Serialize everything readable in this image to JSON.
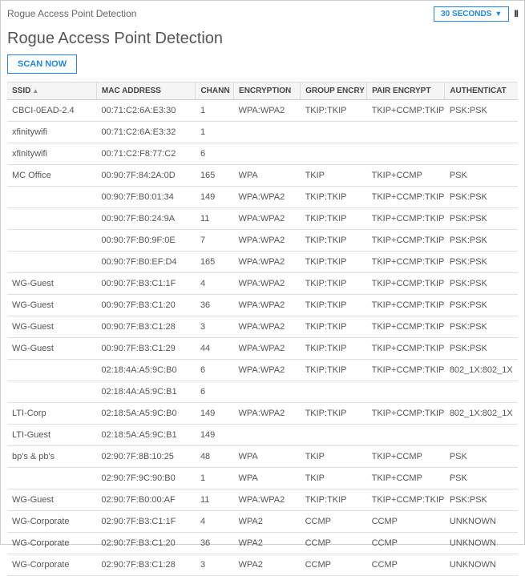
{
  "breadcrumb": "Rogue Access Point Detection",
  "refresh": {
    "label": "30 SECONDS"
  },
  "pageTitle": "Rogue Access Point Detection",
  "scanBtn": "SCAN NOW",
  "columns": {
    "ssid": "SSID",
    "mac": "MAC ADDRESS",
    "chan": "CHANN",
    "enc": "ENCRYPTION",
    "grp": "GROUP ENCRY",
    "pair": "PAIR ENCRYPT",
    "auth": "AUTHENTICAT"
  },
  "rows": [
    {
      "ssid": "CBCI-0EAD-2.4",
      "mac": "00:71:C2:6A:E3:30",
      "chan": "1",
      "enc": "WPA:WPA2",
      "grp": "TKIP:TKIP",
      "pair": "TKIP+CCMP:TKIP",
      "auth": "PSK:PSK"
    },
    {
      "ssid": "xfinitywifi",
      "mac": "00:71:C2:6A:E3:32",
      "chan": "1",
      "enc": "",
      "grp": "",
      "pair": "",
      "auth": ""
    },
    {
      "ssid": "xfinitywifi",
      "mac": "00:71:C2:F8:77:C2",
      "chan": "6",
      "enc": "",
      "grp": "",
      "pair": "",
      "auth": ""
    },
    {
      "ssid": "MC Office",
      "mac": "00:90:7F:84:2A:0D",
      "chan": "165",
      "enc": "WPA",
      "grp": "TKIP",
      "pair": "TKIP+CCMP",
      "auth": "PSK"
    },
    {
      "ssid": "",
      "mac": "00:90:7F:B0:01:34",
      "chan": "149",
      "enc": "WPA:WPA2",
      "grp": "TKIP:TKIP",
      "pair": "TKIP+CCMP:TKIP",
      "auth": "PSK:PSK"
    },
    {
      "ssid": "",
      "mac": "00:90:7F:B0:24:9A",
      "chan": "11",
      "enc": "WPA:WPA2",
      "grp": "TKIP:TKIP",
      "pair": "TKIP+CCMP:TKIP",
      "auth": "PSK:PSK"
    },
    {
      "ssid": "",
      "mac": "00:90:7F:B0:9F:0E",
      "chan": "7",
      "enc": "WPA:WPA2",
      "grp": "TKIP:TKIP",
      "pair": "TKIP+CCMP:TKIP",
      "auth": "PSK:PSK"
    },
    {
      "ssid": "",
      "mac": "00:90:7F:B0:EF:D4",
      "chan": "165",
      "enc": "WPA:WPA2",
      "grp": "TKIP:TKIP",
      "pair": "TKIP+CCMP:TKIP",
      "auth": "PSK:PSK"
    },
    {
      "ssid": "WG-Guest",
      "mac": "00:90:7F:B3:C1:1F",
      "chan": "4",
      "enc": "WPA:WPA2",
      "grp": "TKIP:TKIP",
      "pair": "TKIP+CCMP:TKIP",
      "auth": "PSK:PSK"
    },
    {
      "ssid": "WG-Guest",
      "mac": "00:90:7F:B3:C1:20",
      "chan": "36",
      "enc": "WPA:WPA2",
      "grp": "TKIP:TKIP",
      "pair": "TKIP+CCMP:TKIP",
      "auth": "PSK:PSK"
    },
    {
      "ssid": "WG-Guest",
      "mac": "00:90:7F:B3:C1:28",
      "chan": "3",
      "enc": "WPA:WPA2",
      "grp": "TKIP:TKIP",
      "pair": "TKIP+CCMP:TKIP",
      "auth": "PSK:PSK"
    },
    {
      "ssid": "WG-Guest",
      "mac": "00:90:7F:B3:C1:29",
      "chan": "44",
      "enc": "WPA:WPA2",
      "grp": "TKIP:TKIP",
      "pair": "TKIP+CCMP:TKIP",
      "auth": "PSK:PSK"
    },
    {
      "ssid": "",
      "mac": "02:18:4A:A5:9C:B0",
      "chan": "6",
      "enc": "WPA:WPA2",
      "grp": "TKIP:TKIP",
      "pair": "TKIP+CCMP:TKIP",
      "auth": "802_1X:802_1X"
    },
    {
      "ssid": "",
      "mac": "02:18:4A:A5:9C:B1",
      "chan": "6",
      "enc": "",
      "grp": "",
      "pair": "",
      "auth": ""
    },
    {
      "ssid": "LTI-Corp",
      "mac": "02:18:5A:A5:9C:B0",
      "chan": "149",
      "enc": "WPA:WPA2",
      "grp": "TKIP:TKIP",
      "pair": "TKIP+CCMP:TKIP",
      "auth": "802_1X:802_1X"
    },
    {
      "ssid": "LTI-Guest",
      "mac": "02:18:5A:A5:9C:B1",
      "chan": "149",
      "enc": "",
      "grp": "",
      "pair": "",
      "auth": ""
    },
    {
      "ssid": "bp's & pb's",
      "mac": "02:90:7F:8B:10:25",
      "chan": "48",
      "enc": "WPA",
      "grp": "TKIP",
      "pair": "TKIP+CCMP",
      "auth": "PSK"
    },
    {
      "ssid": "",
      "mac": "02:90:7F:9C:90:B0",
      "chan": "1",
      "enc": "WPA",
      "grp": "TKIP",
      "pair": "TKIP+CCMP",
      "auth": "PSK"
    },
    {
      "ssid": "WG-Guest",
      "mac": "02:90:7F:B0:00:AF",
      "chan": "11",
      "enc": "WPA:WPA2",
      "grp": "TKIP:TKIP",
      "pair": "TKIP+CCMP:TKIP",
      "auth": "PSK:PSK"
    },
    {
      "ssid": "WG-Corporate",
      "mac": "02:90:7F:B3:C1:1F",
      "chan": "4",
      "enc": "WPA2",
      "grp": "CCMP",
      "pair": "CCMP",
      "auth": "UNKNOWN"
    },
    {
      "ssid": "WG-Corporate",
      "mac": "02:90:7F:B3:C1:20",
      "chan": "36",
      "enc": "WPA2",
      "grp": "CCMP",
      "pair": "CCMP",
      "auth": "UNKNOWN"
    },
    {
      "ssid": "WG-Corporate",
      "mac": "02:90:7F:B3:C1:28",
      "chan": "3",
      "enc": "WPA2",
      "grp": "CCMP",
      "pair": "CCMP",
      "auth": "UNKNOWN"
    }
  ]
}
